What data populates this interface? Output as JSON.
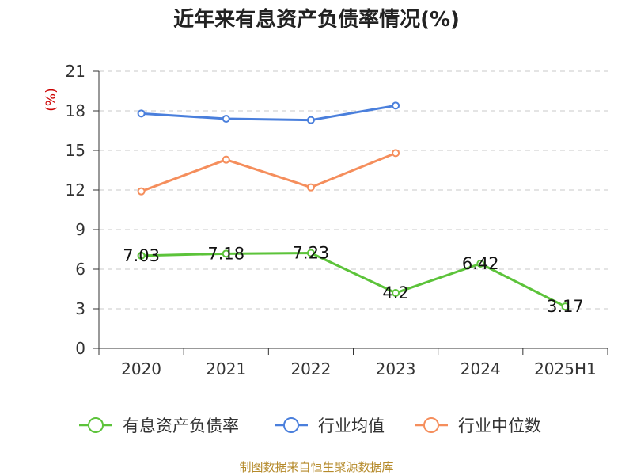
{
  "chart_data": {
    "type": "line",
    "title": "近年来有息资产负债率情况(%)",
    "y_unit": "(%)",
    "categories": [
      "2020",
      "2021",
      "2022",
      "2023",
      "2024",
      "2025H1"
    ],
    "ylim": [
      0,
      21
    ],
    "yticks": [
      "0",
      "3",
      "6",
      "9",
      "12",
      "15",
      "18",
      "21"
    ],
    "grid": true,
    "legend_position": "bottom",
    "series": [
      {
        "name": "有息资产负债率",
        "color": "#5cc33a",
        "values": [
          7.03,
          7.18,
          7.23,
          4.2,
          6.42,
          3.17
        ],
        "labels": [
          "7.03",
          "7.18",
          "7.23",
          "4.2",
          "6.42",
          "3.17"
        ]
      },
      {
        "name": "行业均值",
        "color": "#4a7fdc",
        "values": [
          17.8,
          17.4,
          17.3,
          18.4,
          null,
          null
        ]
      },
      {
        "name": "行业中位数",
        "color": "#f58e5c",
        "values": [
          11.9,
          14.3,
          12.2,
          14.8,
          null,
          null
        ]
      }
    ]
  },
  "source": "制图数据来自恒生聚源数据库"
}
